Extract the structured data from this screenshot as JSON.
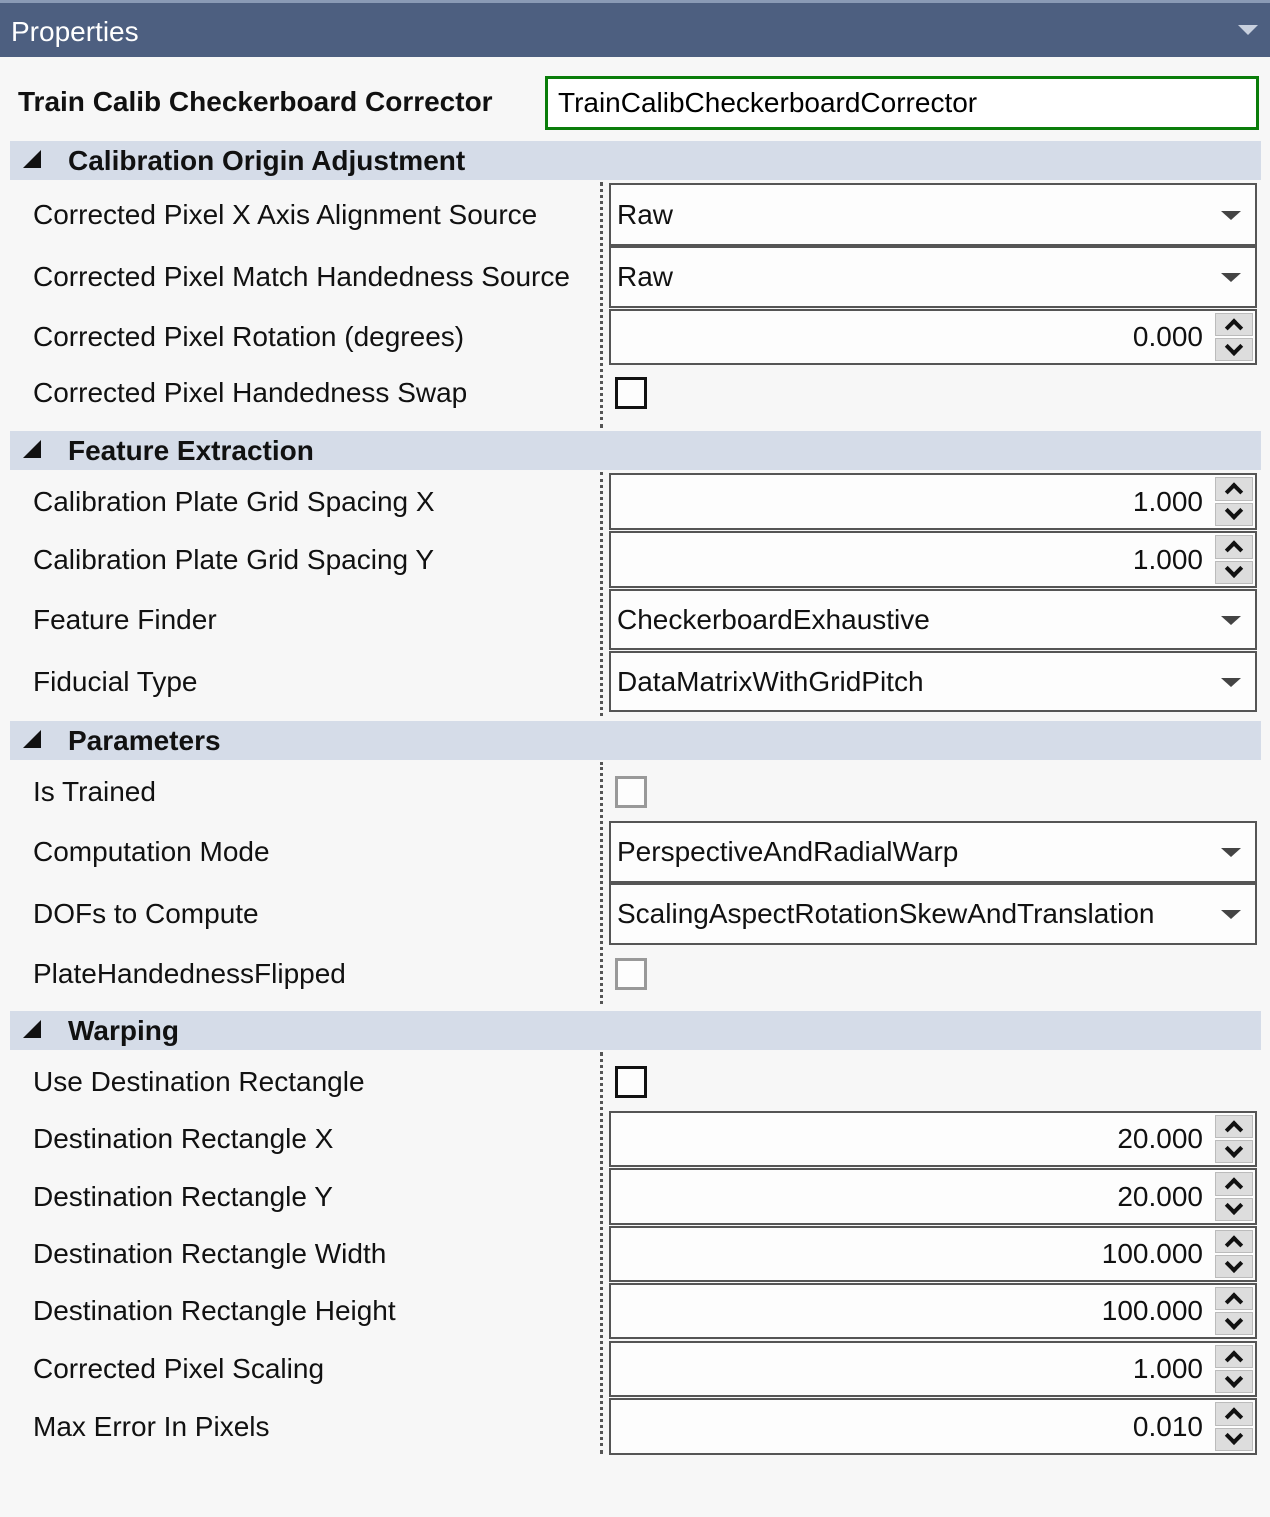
{
  "header": {
    "title": "Properties",
    "collapse_icon": "chevron-down-icon"
  },
  "object": {
    "label": "Train Calib Checkerboard Corrector",
    "name_value": "TrainCalibCheckerboardCorrector",
    "accent": "#0a7d0a"
  },
  "sections": [
    {
      "name": "Calibration Origin Adjustment",
      "rows": [
        {
          "label": "Corrected Pixel X Axis Alignment Source",
          "type": "dropdown",
          "value": "Raw"
        },
        {
          "label": "Corrected Pixel Match Handedness Source",
          "type": "dropdown",
          "value": "Raw"
        },
        {
          "label": "Corrected Pixel Rotation (degrees)",
          "type": "spinner",
          "value": "0.000"
        },
        {
          "label": "Corrected Pixel Handedness Swap",
          "type": "checkbox",
          "checked": false,
          "enabled": true
        }
      ]
    },
    {
      "name": "Feature Extraction",
      "rows": [
        {
          "label": "Calibration Plate Grid Spacing X",
          "type": "spinner",
          "value": "1.000"
        },
        {
          "label": "Calibration Plate Grid Spacing Y",
          "type": "spinner",
          "value": "1.000"
        },
        {
          "label": "Feature Finder",
          "type": "dropdown",
          "value": "CheckerboardExhaustive"
        },
        {
          "label": "Fiducial Type",
          "type": "dropdown",
          "value": "DataMatrixWithGridPitch"
        }
      ]
    },
    {
      "name": "Parameters",
      "rows": [
        {
          "label": "Is Trained",
          "type": "checkbox",
          "checked": false,
          "enabled": false
        },
        {
          "label": "Computation Mode",
          "type": "dropdown",
          "value": "PerspectiveAndRadialWarp"
        },
        {
          "label": "DOFs to Compute",
          "type": "dropdown",
          "value": "ScalingAspectRotationSkewAndTranslation"
        },
        {
          "label": "PlateHandednessFlipped",
          "type": "checkbox",
          "checked": false,
          "enabled": false
        }
      ]
    },
    {
      "name": "Warping",
      "rows": [
        {
          "label": "Use Destination Rectangle",
          "type": "checkbox",
          "checked": false,
          "enabled": true
        },
        {
          "label": "Destination Rectangle X",
          "type": "spinner",
          "value": "20.000"
        },
        {
          "label": "Destination Rectangle Y",
          "type": "spinner",
          "value": "20.000"
        },
        {
          "label": "Destination Rectangle Width",
          "type": "spinner",
          "value": "100.000"
        },
        {
          "label": "Destination Rectangle Height",
          "type": "spinner",
          "value": "100.000"
        },
        {
          "label": "Corrected Pixel Scaling",
          "type": "spinner",
          "value": "1.000"
        },
        {
          "label": "Max Error In Pixels",
          "type": "spinner",
          "value": "0.010"
        }
      ]
    }
  ]
}
